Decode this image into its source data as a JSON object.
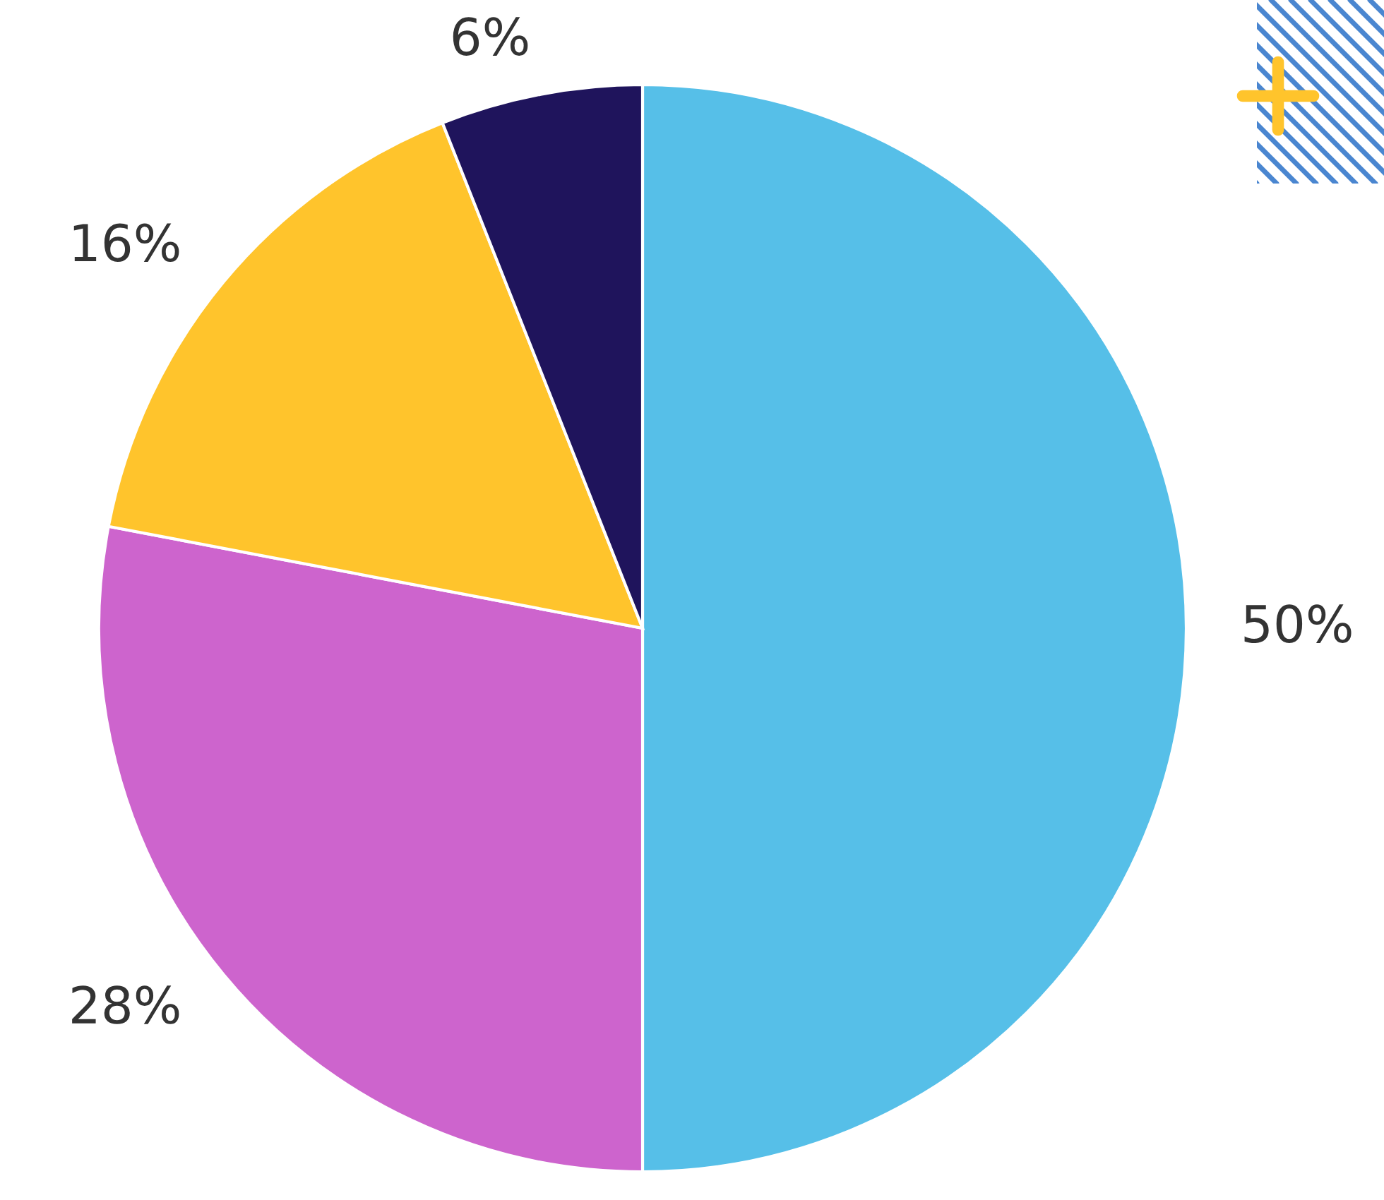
{
  "chart_data": {
    "type": "pie",
    "categories": [
      null,
      null,
      null,
      null
    ],
    "values": [
      50,
      28,
      16,
      6
    ],
    "colors": [
      "#56bfe8",
      "#cd64cd",
      "#ffc42c",
      "#1f145c"
    ],
    "value_labels": [
      "50%",
      "28%",
      "16%",
      "6%"
    ]
  }
}
